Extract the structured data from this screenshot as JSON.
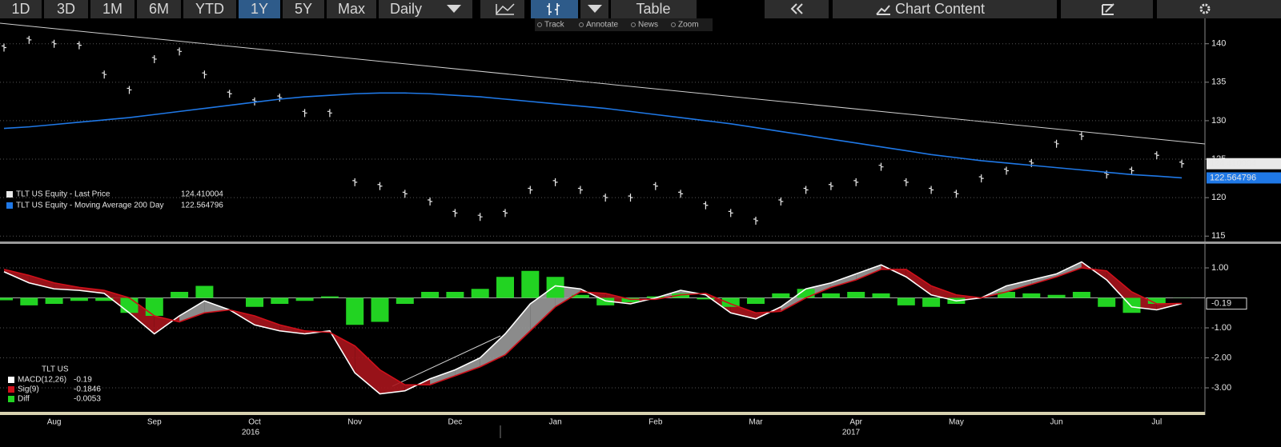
{
  "toolbar": {
    "ranges": [
      "1D",
      "3D",
      "1M",
      "6M",
      "YTD",
      "1Y",
      "5Y",
      "Max"
    ],
    "frequency": "Daily",
    "table": "Table",
    "chart_content": "Chart Content",
    "tools": [
      "Track",
      "Annotate",
      "News",
      "Zoom"
    ]
  },
  "chart_data": [
    {
      "type": "line",
      "grid": true,
      "categories": [
        null,
        null,
        "Aug",
        null,
        null,
        null,
        "Sep",
        null,
        null,
        null,
        "Oct",
        null,
        null,
        null,
        "Nov",
        null,
        null,
        null,
        "Dec",
        null,
        null,
        null,
        "Jan",
        null,
        null,
        null,
        "Feb",
        null,
        null,
        null,
        "Mar",
        null,
        null,
        null,
        "Apr",
        null,
        null,
        null,
        "May",
        null,
        null,
        null,
        "Jun",
        null,
        null,
        null,
        "Jul",
        null
      ],
      "year_labels": [
        "2016",
        "2017"
      ],
      "ylim": [
        114.3,
        143.4
      ],
      "yticks": [
        115,
        120,
        125,
        130,
        135,
        140
      ],
      "series": [
        {
          "name": "TLT US Equity - Last Price",
          "color": "#e8e8e8",
          "style": "ticks",
          "values": [
            139.5,
            140.5,
            140,
            139.8,
            136,
            134,
            138,
            139,
            136,
            133.5,
            132.5,
            133,
            131,
            131,
            122,
            121.5,
            120.5,
            119.5,
            118,
            117.5,
            118,
            121,
            122,
            121,
            120,
            120,
            121.5,
            120.5,
            119,
            118,
            117,
            119.5,
            121,
            121.5,
            122,
            124,
            122,
            121,
            120.5,
            122.5,
            123.5,
            124.5,
            127,
            128,
            123,
            123.5,
            125.5,
            124.410004
          ]
        },
        {
          "name": "TLT US Equity - Moving Average 200 Day",
          "color": "#1f78e6",
          "style": "line",
          "values": [
            129,
            129.2,
            129.5,
            129.8,
            130.1,
            130.4,
            130.8,
            131.2,
            131.6,
            132,
            132.4,
            132.8,
            133.1,
            133.3,
            133.5,
            133.6,
            133.6,
            133.5,
            133.3,
            133.1,
            132.8,
            132.5,
            132.2,
            131.9,
            131.6,
            131.2,
            130.8,
            130.4,
            130,
            129.6,
            129.1,
            128.6,
            128.1,
            127.6,
            127.1,
            126.6,
            126.1,
            125.6,
            125.2,
            124.8,
            124.5,
            124.2,
            123.9,
            123.6,
            123.3,
            123,
            122.8,
            122.564796
          ]
        }
      ]
    },
    {
      "type": "line",
      "grid": true,
      "legend_title": "TLT US",
      "ylim": [
        -3.8,
        1.8
      ],
      "yticks": [
        {
          "value": 1,
          "label": "1.00"
        },
        {
          "value": -1,
          "label": "-1.00"
        },
        {
          "value": -2,
          "label": "-2.00"
        },
        {
          "value": -3,
          "label": "-3.00"
        }
      ],
      "fill_colors": [
        "#9a9a9a",
        "#a8141c"
      ],
      "series": [
        {
          "name": "MACD(12,26)",
          "color": "#ffffff",
          "style": "line",
          "values": [
            0.87,
            0.5,
            0.3,
            0.25,
            0.15,
            -0.5,
            -1.2,
            -0.6,
            -0.1,
            -0.4,
            -0.9,
            -1.1,
            -1.2,
            -1.1,
            -2.5,
            -3.2,
            -3.1,
            -2.7,
            -2.4,
            -2,
            -1.2,
            -0.2,
            0.4,
            0.3,
            -0.1,
            -0.2,
            0,
            0.25,
            0.1,
            -0.5,
            -0.7,
            -0.3,
            0.3,
            0.5,
            0.8,
            1.1,
            0.7,
            0.1,
            -0.1,
            0,
            0.4,
            0.6,
            0.8,
            1.2,
            0.6,
            -0.3,
            -0.4,
            -0.19
          ]
        },
        {
          "name": "Sig(9)",
          "color": "#d0101a",
          "style": "line",
          "values": [
            0.95,
            0.75,
            0.5,
            0.35,
            0.25,
            0,
            -0.6,
            -0.8,
            -0.5,
            -0.4,
            -0.6,
            -0.9,
            -1.1,
            -1.15,
            -1.6,
            -2.4,
            -2.9,
            -2.9,
            -2.6,
            -2.3,
            -1.9,
            -1.1,
            -0.3,
            0.2,
            0.15,
            -0.05,
            -0.05,
            0.1,
            0.15,
            -0.2,
            -0.5,
            -0.45,
            0,
            0.35,
            0.6,
            0.95,
            0.95,
            0.4,
            0.1,
            0,
            0.2,
            0.45,
            0.7,
            1,
            0.9,
            0.2,
            -0.2,
            -0.1846
          ]
        },
        {
          "name": "Diff",
          "color": "#22d322",
          "style": "bar",
          "values": [
            -0.08,
            -0.25,
            -0.2,
            -0.1,
            -0.1,
            -0.5,
            -0.6,
            0.2,
            0.4,
            0,
            -0.3,
            -0.2,
            -0.1,
            0.05,
            -0.9,
            -0.8,
            -0.2,
            0.2,
            0.2,
            0.3,
            0.7,
            0.9,
            0.7,
            0.1,
            -0.25,
            -0.15,
            0.05,
            0.15,
            -0.05,
            -0.3,
            -0.2,
            0.15,
            0.3,
            0.15,
            0.2,
            0.15,
            -0.25,
            -0.3,
            -0.2,
            0,
            0.2,
            0.15,
            0.1,
            0.2,
            -0.3,
            -0.5,
            -0.2,
            -0.0053
          ]
        }
      ]
    }
  ]
}
